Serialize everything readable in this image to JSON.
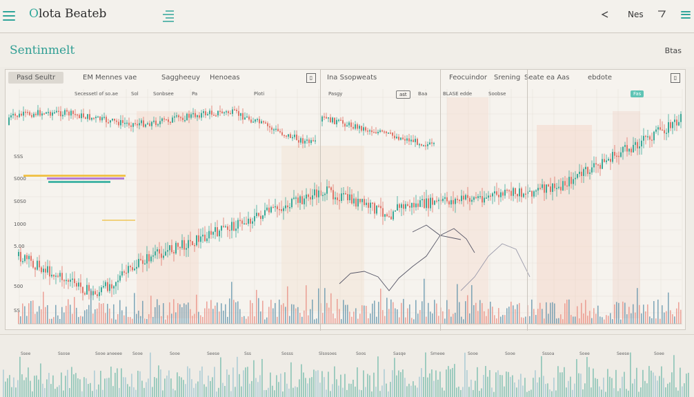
{
  "header": {
    "app_title_prefix": "O",
    "app_title_rest": "lota Beateb",
    "nav_right_text": "Nes"
  },
  "subheader": {
    "page_title": "Sentinmelt",
    "action_label": "Btas"
  },
  "tabs": [
    {
      "label": "Pasd Seultr",
      "active": true
    },
    {
      "label": "EM Mennes vae"
    },
    {
      "label": "Saggheeuy"
    },
    {
      "label": "Henoeas"
    },
    {
      "label": "Ina Ssopweats"
    },
    {
      "label": "Feocuindor"
    },
    {
      "label": "Srening"
    },
    {
      "label": "Seate ea Aas"
    },
    {
      "label": "ebdote"
    }
  ],
  "sub_labels": {
    "a": "Secessetl of so.ae",
    "b": "Sol",
    "c": "Sonbsee",
    "d": "Pa",
    "e": "Ploti",
    "f": "Baa",
    "g": "Pasgy",
    "h": "BLASE edde",
    "i": "Soobse"
  },
  "badges": {
    "mid": "ast",
    "right": "Fas"
  },
  "y_axis": [
    "SSS",
    "S000",
    "S0S0",
    "1000",
    "5.00",
    "500",
    "SS"
  ],
  "bottom_strip_labels": [
    "Ssee",
    "Ssose",
    "Sooe aneeee",
    "Sooe",
    "Sooe",
    "Seese",
    "Sss",
    "Sosss",
    "Slsosoes",
    "Soos",
    "Sasqe",
    "Smeee",
    "Sooe",
    "Sooe",
    "Sssoa",
    "Soee",
    "Seese",
    "Soee"
  ],
  "colors": {
    "accent": "#31a89b",
    "up": "#3aa897",
    "down": "#e07468",
    "volume_down": "#e8897d",
    "volume_up": "#5a8fa8",
    "highlight_bar_1": "#f0c24b",
    "highlight_bar_2": "#b37ad4",
    "highlight_bar_3": "#45b4a6"
  },
  "icons": {
    "menu": "hamburger-icon",
    "center_menu": "list-icon",
    "back": "chevron-left-icon",
    "filter": "funnel-icon",
    "settings_menu": "hamburger-icon"
  }
}
